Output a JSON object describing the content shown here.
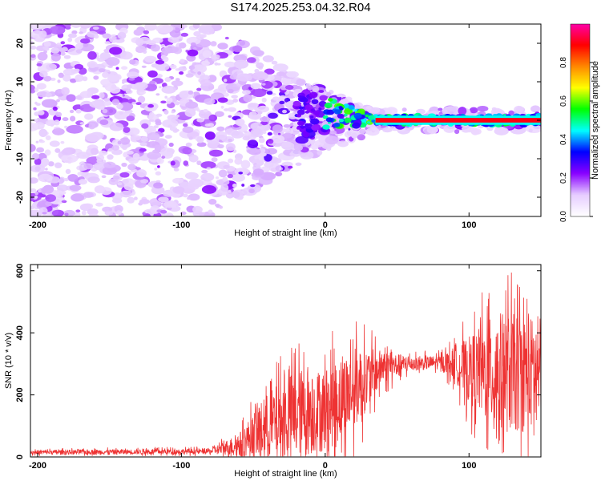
{
  "title": "S174.2025.253.04.32.R04",
  "chart_data": [
    {
      "type": "heatmap",
      "xlabel": "Height of straight line (km)",
      "ylabel": "Frequency (Hz)",
      "xlim": [
        -205,
        150
      ],
      "ylim": [
        -25,
        25
      ],
      "xticks": [
        -200,
        -100,
        0,
        100
      ],
      "yticks": [
        -20,
        -10,
        0,
        10,
        20
      ],
      "colorbar": {
        "label": "Normalized spectral amplitude",
        "range": [
          0.0,
          1.0
        ],
        "ticks": [
          "0.0",
          "0.2",
          "0.4",
          "0.6",
          "0.8"
        ],
        "tick_values": [
          0.0,
          0.2,
          0.4,
          0.6,
          0.8
        ],
        "colors": [
          "#ffffff",
          "#e6ccff",
          "#8800ff",
          "#0000ff",
          "#00ffff",
          "#00ff00",
          "#ffff00",
          "#ff8800",
          "#ff0000",
          "#ff00aa"
        ]
      },
      "signal_center_hz": 0,
      "signal_onset_km": -80,
      "signal_lock_km": 35
    },
    {
      "type": "line",
      "xlabel": "Height of straight line (km)",
      "ylabel": "SNR (10 * v/v)",
      "xlim": [
        -205,
        150
      ],
      "ylim": [
        0,
        620
      ],
      "xticks": [
        -200,
        -100,
        0,
        100
      ],
      "yticks": [
        0,
        200,
        400,
        600
      ],
      "line_color": "#ee3333",
      "envelope": {
        "x": [
          -205,
          -80,
          -60,
          -40,
          -20,
          0,
          20,
          40,
          60,
          80,
          90,
          100,
          120,
          150
        ],
        "mean": [
          15,
          18,
          40,
          100,
          140,
          150,
          220,
          290,
          300,
          305,
          300,
          280,
          270,
          270
        ],
        "spread": [
          8,
          10,
          40,
          120,
          160,
          150,
          150,
          60,
          25,
          25,
          60,
          120,
          220,
          200
        ]
      }
    }
  ]
}
